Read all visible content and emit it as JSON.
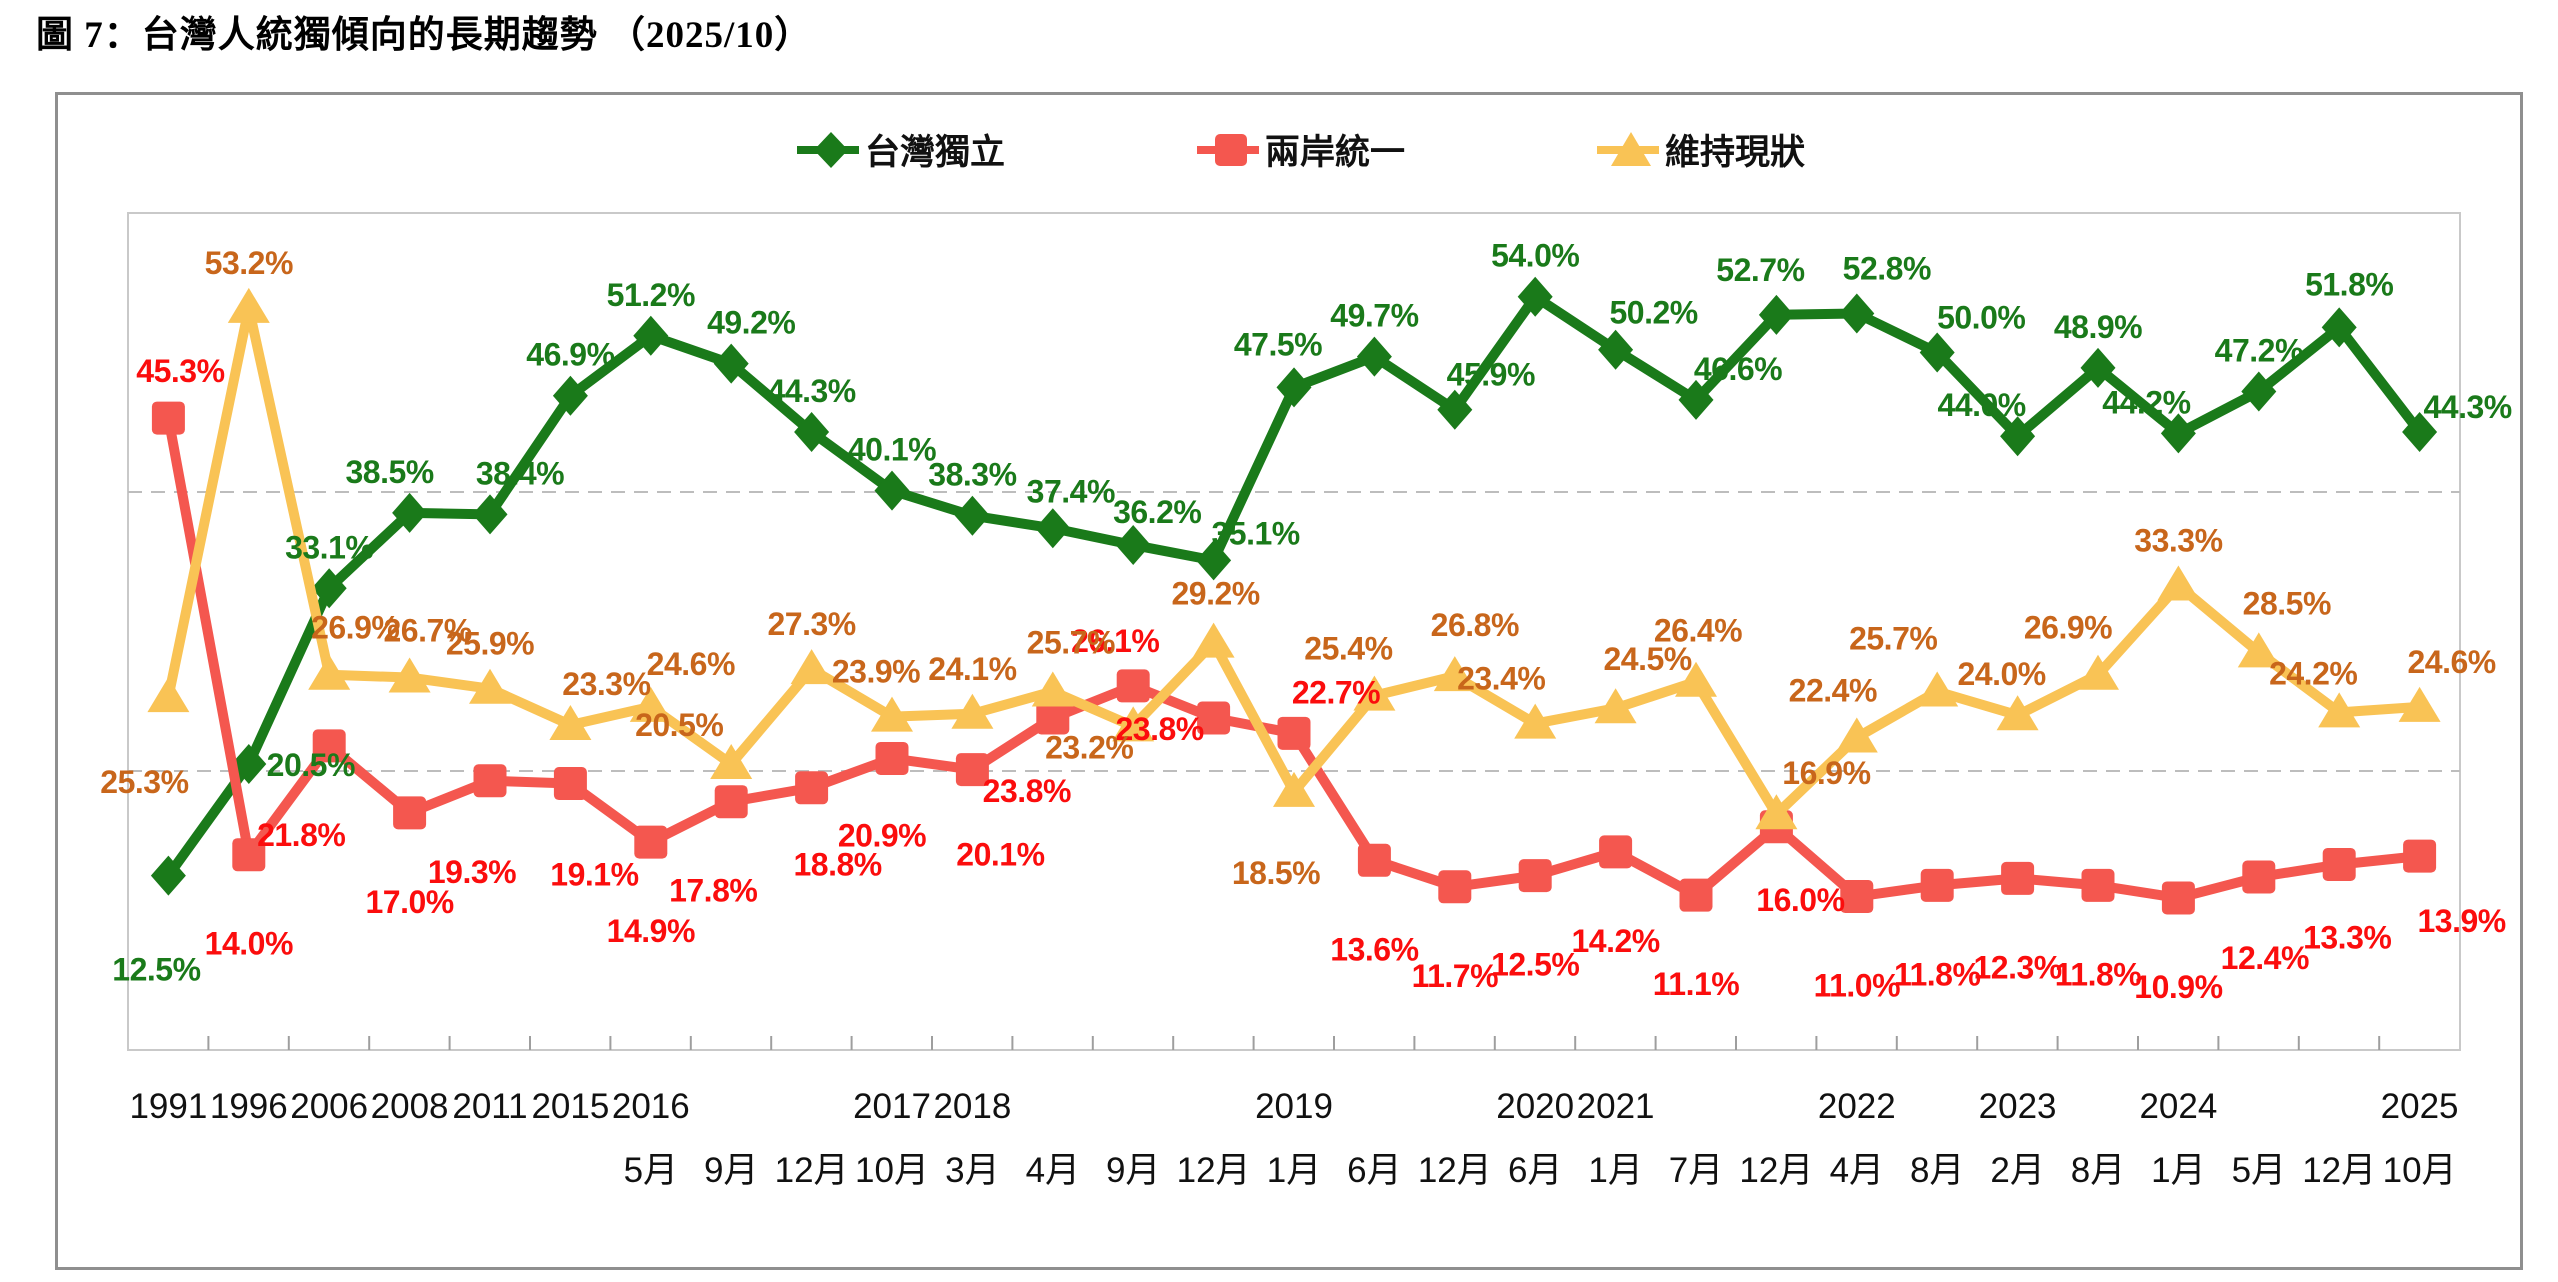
{
  "title": "圖 7：台灣人統獨傾向的長期趨勢 （2025/10）",
  "legend": {
    "items": [
      {
        "label": "台灣獨立",
        "marker": "diamond",
        "color": "#1a7a1a"
      },
      {
        "label": "兩岸統一",
        "marker": "square",
        "color": "#f4574f"
      },
      {
        "label": "維持現狀",
        "marker": "triangle",
        "color": "#f9c355"
      }
    ]
  },
  "chart_data": {
    "type": "line",
    "title": "圖 7：台灣人統獨傾向的長期趨勢 （2025/10）",
    "ylim": [
      0,
      60
    ],
    "gridlines_pct": [
      20,
      40
    ],
    "grid": "dashed-horizontal",
    "legend_position": "top-center",
    "categories": [
      "1991",
      "1996",
      "2006",
      "2008",
      "2011",
      "2015",
      "2016/5月",
      "2016/9月",
      "2016/12月",
      "2017/10月",
      "2018/3月",
      "2018/4月",
      "2018/9月",
      "2018/12月",
      "2019/1月",
      "2019/6月",
      "2019/12月",
      "2020/6月",
      "2021/1月",
      "2021/7月",
      "2021/12月",
      "2022/4月",
      "2022/8月",
      "2023/2月",
      "2023/8月",
      "2024/1月",
      "2024/5月",
      "2024/12月",
      "2025/10月"
    ],
    "x_axis": {
      "year_row": [
        {
          "text": "1991",
          "i": 0
        },
        {
          "text": "1996",
          "i": 1
        },
        {
          "text": "2006",
          "i": 2
        },
        {
          "text": "2008",
          "i": 3
        },
        {
          "text": "2011",
          "i": 4
        },
        {
          "text": "2015",
          "i": 5
        },
        {
          "text": "2016",
          "i": 6
        },
        {
          "text": "2017",
          "i": 9
        },
        {
          "text": "2018",
          "i": 10
        },
        {
          "text": "2019",
          "i": 14
        },
        {
          "text": "2020",
          "i": 17
        },
        {
          "text": "2021",
          "i": 18
        },
        {
          "text": "2022",
          "i": 21
        },
        {
          "text": "2023",
          "i": 23
        },
        {
          "text": "2024",
          "i": 25
        },
        {
          "text": "2025",
          "i": 28
        }
      ],
      "month_row": [
        {
          "text": "5月",
          "i": 6
        },
        {
          "text": "9月",
          "i": 7
        },
        {
          "text": "12月",
          "i": 8
        },
        {
          "text": "10月",
          "i": 9
        },
        {
          "text": "3月",
          "i": 10
        },
        {
          "text": "4月",
          "i": 11
        },
        {
          "text": "9月",
          "i": 12
        },
        {
          "text": "12月",
          "i": 13
        },
        {
          "text": "1月",
          "i": 14
        },
        {
          "text": "6月",
          "i": 15
        },
        {
          "text": "12月",
          "i": 16
        },
        {
          "text": "6月",
          "i": 17
        },
        {
          "text": "1月",
          "i": 18
        },
        {
          "text": "7月",
          "i": 19
        },
        {
          "text": "12月",
          "i": 20
        },
        {
          "text": "4月",
          "i": 21
        },
        {
          "text": "8月",
          "i": 22
        },
        {
          "text": "2月",
          "i": 23
        },
        {
          "text": "8月",
          "i": 24
        },
        {
          "text": "1月",
          "i": 25
        },
        {
          "text": "5月",
          "i": 26
        },
        {
          "text": "12月",
          "i": 27
        },
        {
          "text": "10月",
          "i": 28
        }
      ]
    },
    "series": [
      {
        "name": "台灣獨立",
        "marker": "diamond",
        "line_color": "#1a7a1a",
        "label_color": "#1a7a1a",
        "values": [
          12.5,
          20.5,
          33.1,
          38.5,
          38.4,
          46.9,
          51.2,
          49.2,
          44.3,
          40.1,
          38.3,
          37.4,
          36.2,
          35.1,
          47.5,
          49.7,
          45.9,
          54.0,
          50.2,
          46.6,
          52.7,
          52.8,
          50.0,
          44.0,
          48.9,
          44.2,
          47.2,
          51.8,
          44.3
        ]
      },
      {
        "name": "兩岸統一",
        "marker": "square",
        "line_color": "#f4574f",
        "label_color": "#fb0d0d",
        "values": [
          45.3,
          14.0,
          21.8,
          17.0,
          19.3,
          19.1,
          14.9,
          17.8,
          18.8,
          20.9,
          20.1,
          23.8,
          26.1,
          23.8,
          22.7,
          13.6,
          11.7,
          12.5,
          14.2,
          11.1,
          16.0,
          11.0,
          11.8,
          12.3,
          11.8,
          10.9,
          12.4,
          13.3,
          13.9
        ]
      },
      {
        "name": "維持現狀",
        "marker": "triangle",
        "line_color": "#f9c355",
        "label_color": "#c8661b",
        "values": [
          25.3,
          53.2,
          26.9,
          26.7,
          25.9,
          23.3,
          24.6,
          20.5,
          27.3,
          23.9,
          24.1,
          25.7,
          23.2,
          29.2,
          18.5,
          25.4,
          26.8,
          23.4,
          24.5,
          26.4,
          16.9,
          22.4,
          25.7,
          24.0,
          26.9,
          33.3,
          28.5,
          24.2,
          24.6
        ]
      }
    ]
  }
}
